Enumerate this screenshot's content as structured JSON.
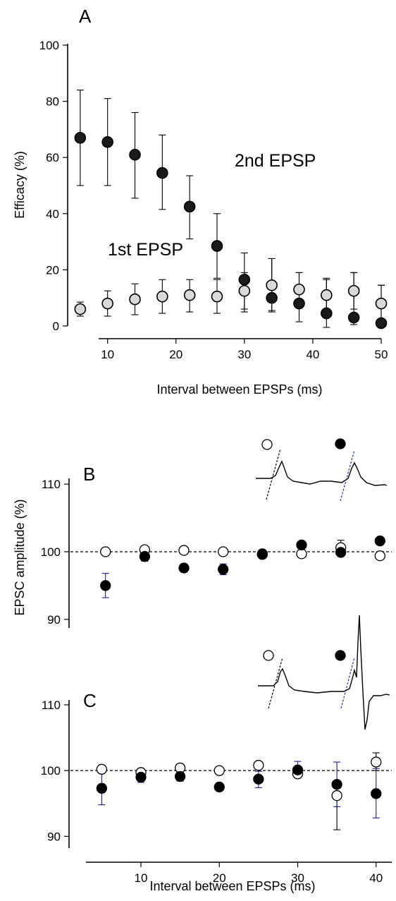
{
  "chart_data": [
    {
      "panel": "A",
      "type": "scatter",
      "title": "",
      "xlabel": "Interval between EPSPs (ms)",
      "ylabel": "Efficacy (%)",
      "xlim": [
        2,
        50
      ],
      "ylim": [
        0,
        100
      ],
      "xticks": [
        10,
        20,
        30,
        40,
        50
      ],
      "yticks": [
        0,
        20,
        40,
        60,
        80,
        100
      ],
      "grid": false,
      "series": [
        {
          "name": "2nd EPSP",
          "marker": "filled-dark",
          "x": [
            6,
            10,
            14,
            18,
            22,
            26,
            30,
            34,
            38,
            42,
            46,
            50
          ],
          "values": [
            67,
            65.5,
            61,
            54.5,
            42.5,
            28.5,
            16.5,
            10,
            8,
            4.5,
            3,
            1
          ],
          "err_low": [
            50,
            50,
            45.5,
            41.5,
            31,
            17,
            5,
            5,
            1.5,
            -0.5,
            0.5,
            0
          ],
          "err_high": [
            84,
            81,
            76,
            68,
            53.5,
            40,
            26,
            24,
            19,
            17,
            19,
            14.5
          ]
        },
        {
          "name": "1st EPSP",
          "marker": "filled-light",
          "x": [
            6,
            10,
            14,
            18,
            22,
            26,
            30,
            34,
            38,
            42,
            46,
            50
          ],
          "values": [
            6,
            8,
            9.5,
            10.5,
            11,
            10.5,
            12.5,
            14.5,
            13,
            11,
            12.5,
            8
          ],
          "err_low": [
            3.5,
            3.5,
            4,
            4.5,
            5,
            4.5,
            6,
            5.5,
            6.5,
            5,
            6,
            1.5
          ],
          "err_high": [
            8.5,
            12.5,
            15,
            16.5,
            16.5,
            16.5,
            19,
            24,
            19,
            16.5,
            19,
            14.5
          ]
        }
      ],
      "annotations": [
        "2nd EPSP",
        "1st EPSP"
      ]
    },
    {
      "panel": "B",
      "type": "scatter",
      "title": "",
      "xlabel": "",
      "ylabel": "EPSC amplitude (%)",
      "xlim": [
        4,
        42
      ],
      "ylim": [
        88,
        112
      ],
      "yticks": [
        90,
        100,
        110
      ],
      "reference_line": 100,
      "grid": false,
      "series": [
        {
          "name": "",
          "marker": "open",
          "x": [
            5.5,
            10.5,
            15.5,
            20.5,
            25.5,
            30.5,
            35.5,
            40.5
          ],
          "values": [
            100,
            100.3,
            100.2,
            100,
            99.7,
            99.7,
            100.6,
            99.4
          ],
          "err_low": [
            100,
            100.3,
            100.2,
            100,
            99.7,
            99.7,
            100.2,
            99.4
          ],
          "err_high": [
            100,
            100.3,
            100.2,
            100,
            99.7,
            99.7,
            101.7,
            99.4
          ]
        },
        {
          "name": "",
          "marker": "filled",
          "x": [
            5.5,
            10.5,
            15.5,
            20.5,
            25.5,
            30.5,
            35.5,
            40.5
          ],
          "values": [
            95,
            99.3,
            97.6,
            97.4,
            99.6,
            101,
            99.9,
            101.6
          ],
          "err_low": [
            93.2,
            98.6,
            97,
            96.6,
            99.2,
            101,
            99.9,
            101.6
          ],
          "err_high": [
            96.8,
            100,
            98.2,
            98.2,
            100,
            101,
            99.9,
            101.6
          ]
        }
      ]
    },
    {
      "panel": "C",
      "type": "scatter",
      "title": "",
      "xlabel": "Interval between EPSPs (ms)",
      "ylabel": "",
      "xlim": [
        2,
        42
      ],
      "ylim": [
        88,
        113
      ],
      "xticks": [
        10,
        20,
        30,
        40
      ],
      "yticks": [
        90,
        100,
        110
      ],
      "reference_line": 100,
      "grid": false,
      "series": [
        {
          "name": "",
          "marker": "open",
          "x": [
            5,
            10,
            15,
            20,
            25,
            30,
            35,
            40
          ],
          "values": [
            100.2,
            99.7,
            100.4,
            100,
            100.8,
            99.5,
            96.2,
            101.3
          ],
          "err_low": [
            100.2,
            99.7,
            100.4,
            100,
            100.8,
            99.5,
            91,
            100
          ],
          "err_high": [
            100.2,
            99.7,
            100.4,
            100,
            100.8,
            99.5,
            96.2,
            102.7
          ]
        },
        {
          "name": "",
          "marker": "filled",
          "x": [
            5,
            10,
            15,
            20,
            25,
            30,
            35,
            40
          ],
          "values": [
            97.3,
            99,
            99.1,
            97.5,
            98.7,
            100.1,
            97.9,
            96.5
          ],
          "err_low": [
            94.8,
            98.2,
            98.4,
            97.5,
            97.4,
            99.2,
            94.5,
            92.8
          ],
          "err_high": [
            99.8,
            99.8,
            99.8,
            97.5,
            99.9,
            101.4,
            101.3,
            100.3
          ]
        }
      ]
    }
  ],
  "labels": {
    "panel_a": "A",
    "panel_b": "B",
    "panel_c": "C",
    "a_ylabel": "Efficacy (%)",
    "a_xlabel": "Interval between EPSPs (ms)",
    "b_ylabel": "EPSC amplitude (%)",
    "c_xlabel": "Interval between EPSPs (ms)",
    "a_series_2nd": "2nd EPSP",
    "a_series_1st": "1st EPSP"
  },
  "colors": {
    "marker_dark": "#1a1a1a",
    "marker_light": "#d9d9d9",
    "error_blue": "#1a1a80"
  }
}
